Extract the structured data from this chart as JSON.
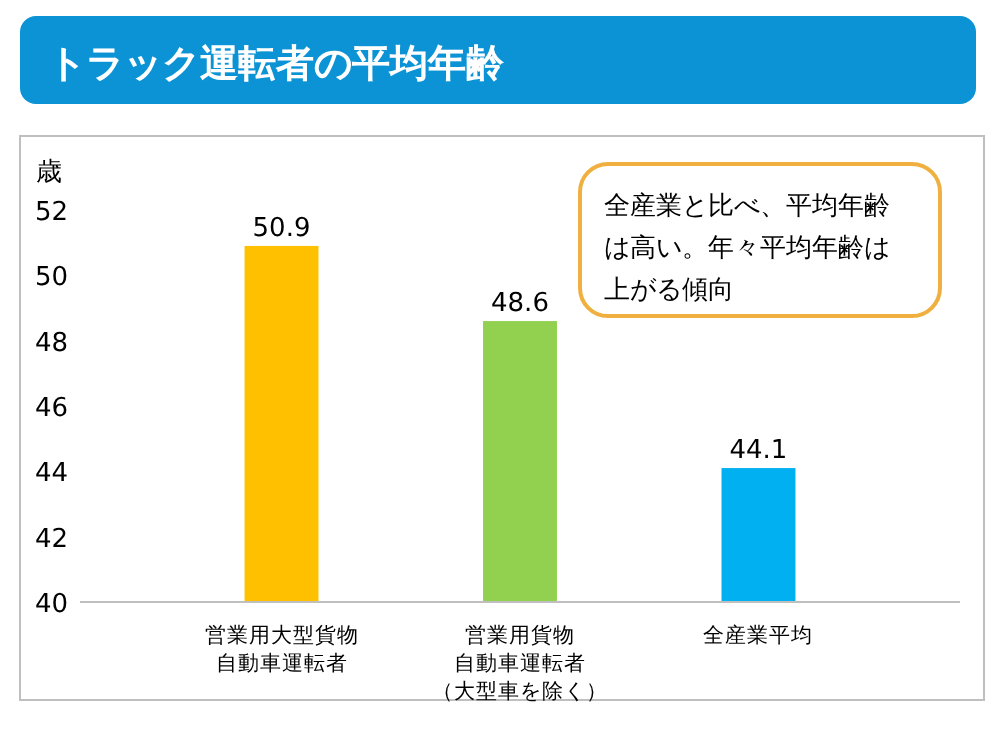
{
  "chart_data": {
    "type": "bar",
    "title": "トラック運転者の平均年齢",
    "ylabel": "歳",
    "categories": [
      "営業用大型貨物自動車運転者",
      "営業用貨物自動車運転者（大型車を除く）",
      "全産業平均"
    ],
    "values": [
      50.9,
      48.6,
      44.1
    ],
    "colors": [
      "#ffc000",
      "#92d050",
      "#00b0f0"
    ],
    "ylim": [
      40,
      52
    ],
    "yticks": [
      40,
      42,
      44,
      46,
      48,
      50,
      52
    ],
    "grid": false,
    "data_labels": true,
    "annotations": [
      "全産業と比べ、平均年齢は高い。年々平均年齢は上がる傾向"
    ]
  }
}
